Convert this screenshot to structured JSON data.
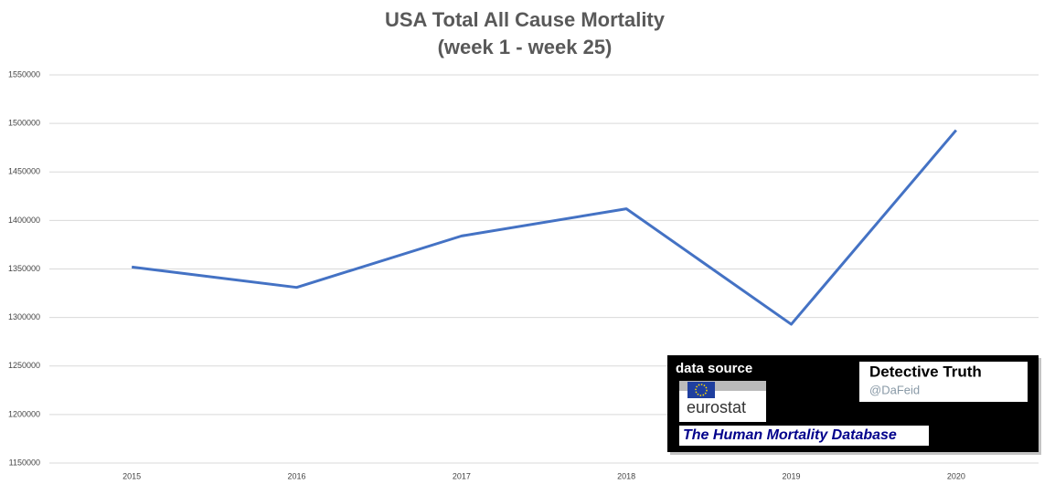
{
  "chart_data": {
    "type": "line",
    "title": "USA Total All Cause Mortality",
    "subtitle": "(week 1 - week 25)",
    "categories": [
      "2015",
      "2016",
      "2017",
      "2018",
      "2019",
      "2020"
    ],
    "values": [
      1352000,
      1331000,
      1384000,
      1412000,
      1293000,
      1493000
    ],
    "color": "#4472c4",
    "ylim": [
      1150000,
      1550000
    ],
    "yticks": [
      1150000,
      1200000,
      1250000,
      1300000,
      1350000,
      1400000,
      1450000,
      1500000,
      1550000
    ],
    "grid": true
  },
  "source_box": {
    "label": "data source",
    "logo": "eurostat",
    "database": "The Human Mortality Database",
    "author": "Detective Truth",
    "handle": "@DaFeid"
  }
}
